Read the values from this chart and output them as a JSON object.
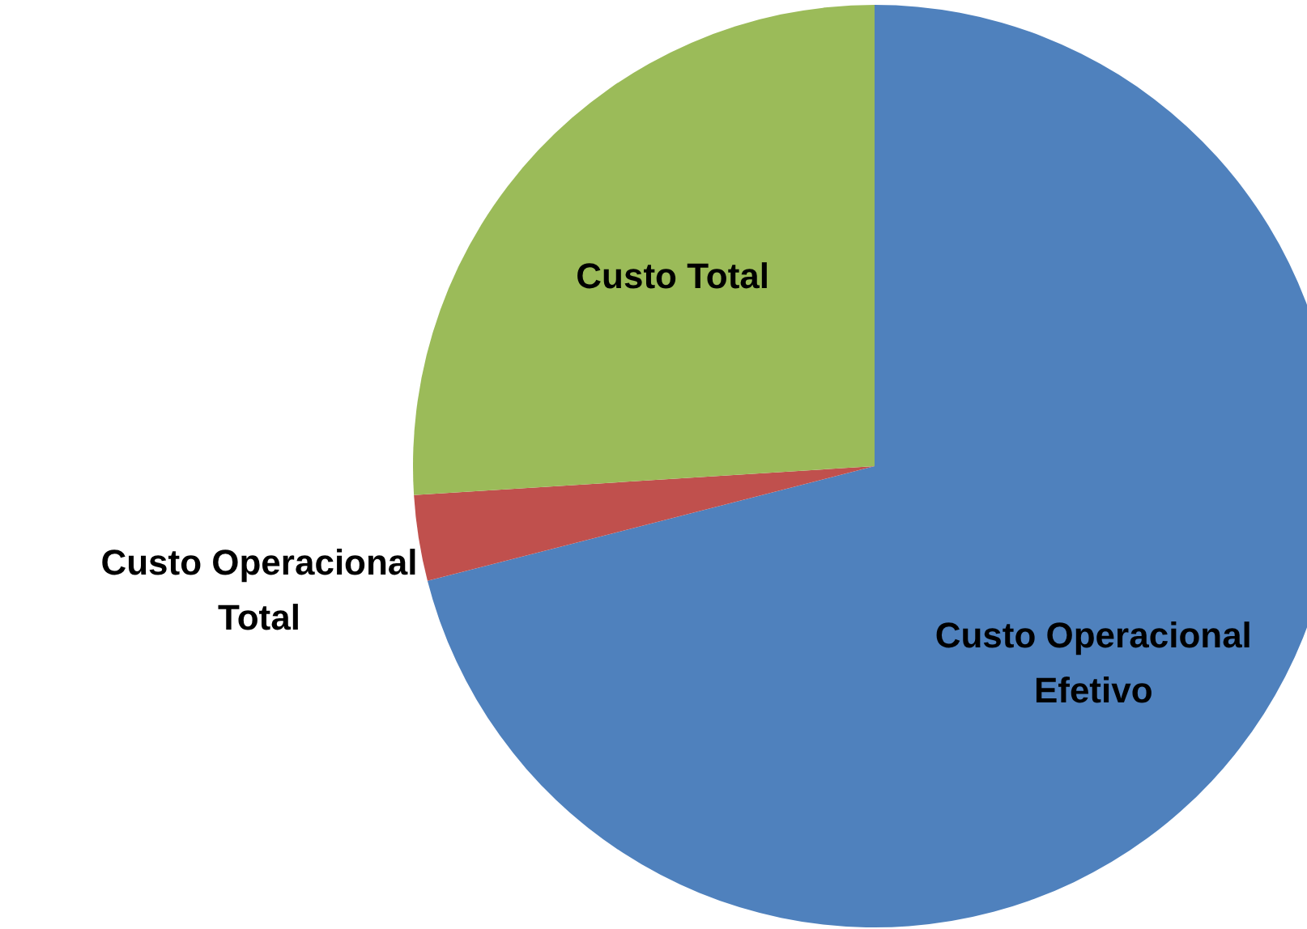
{
  "chart_data": {
    "type": "pie",
    "categories": [
      "Custo Operacional Efetivo",
      "Custo Operacional Total",
      "Custo Total"
    ],
    "values": [
      71,
      3,
      26
    ],
    "colors": [
      "#4f81bd",
      "#c0504d",
      "#9bbb59"
    ]
  }
}
